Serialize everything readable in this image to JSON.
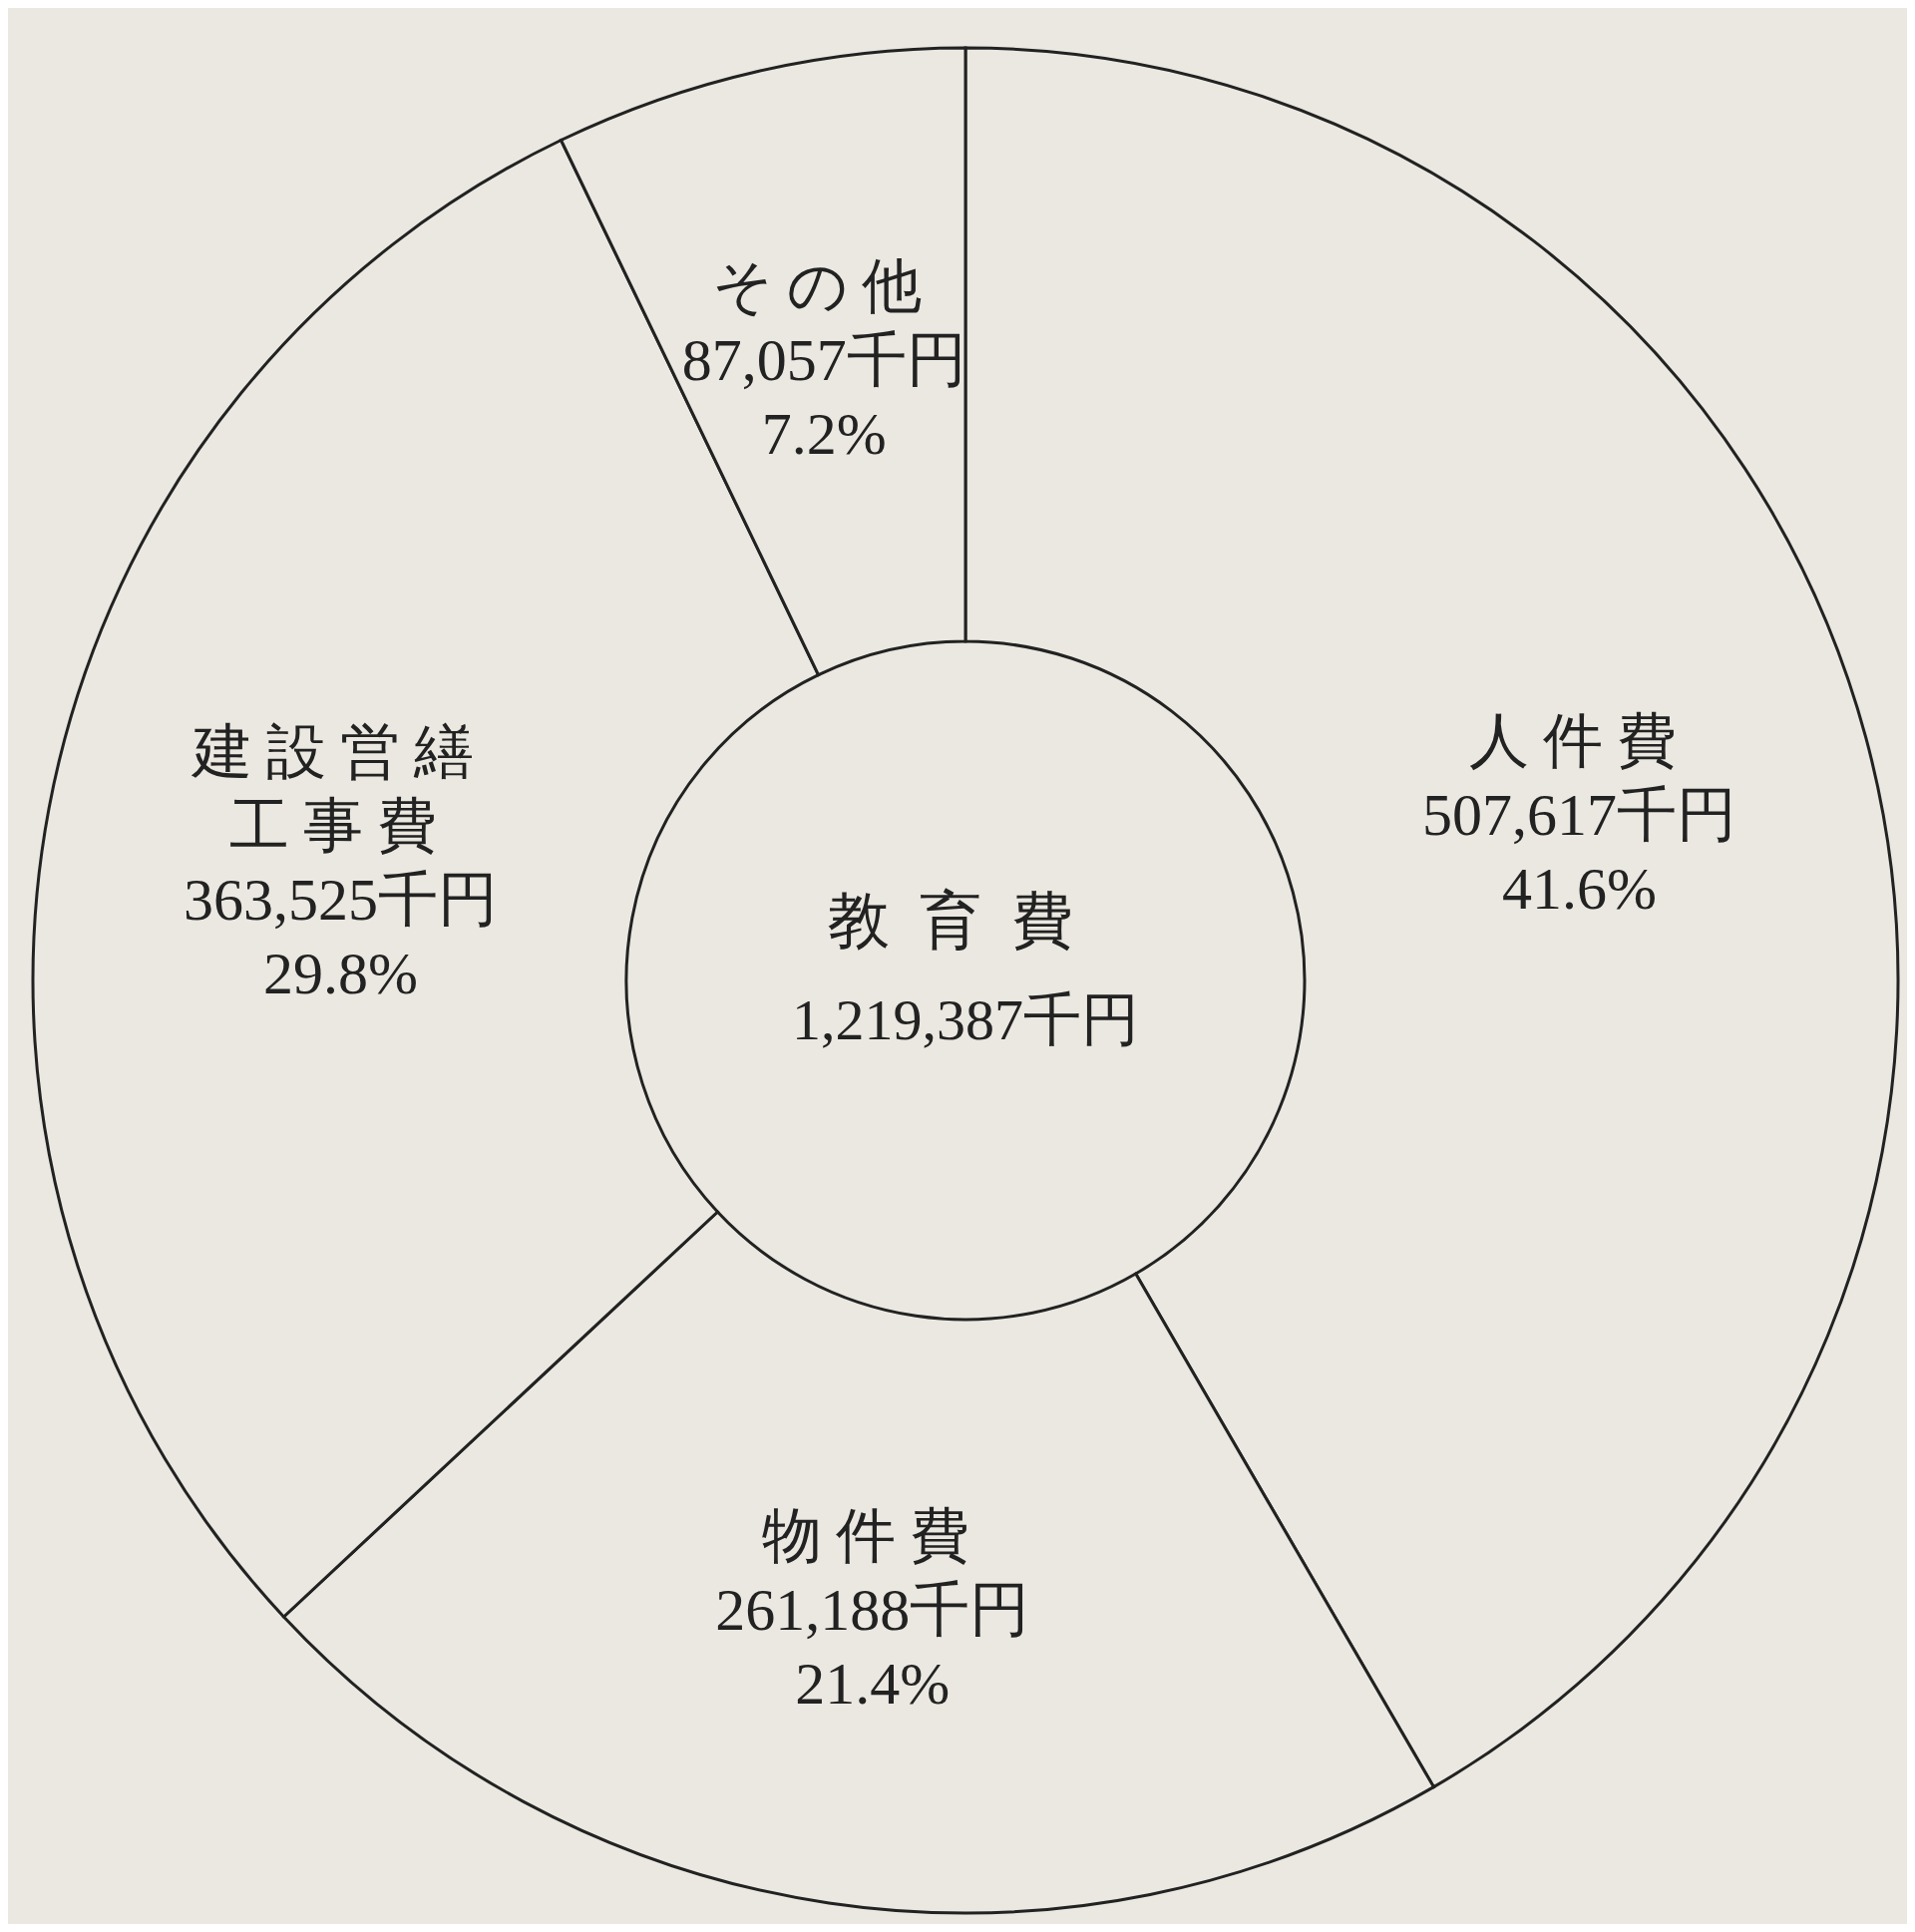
{
  "chart_data": {
    "type": "donut",
    "title": "教育費",
    "subtitle": "1,219,387千円",
    "categories": [
      "人件費",
      "物件費",
      "建設営繕工事費",
      "その他"
    ],
    "values": [
      507617,
      261188,
      363525,
      87057
    ],
    "colors": [
      "#ebe8e1",
      "#ebe8e1",
      "#ebe8e1",
      "#ebe8e1"
    ],
    "value_labels": [
      "507,617千円",
      "261,188千円",
      "363,525千円",
      "87,057千円"
    ],
    "annotations": [
      {
        "text": "41.6%",
        "x": "人件費"
      },
      {
        "text": "21.4%",
        "x": "物件費"
      },
      {
        "text": "29.8%",
        "x": "建設営繕工事費"
      },
      {
        "text": "7.2%",
        "x": "その他"
      }
    ]
  }
}
